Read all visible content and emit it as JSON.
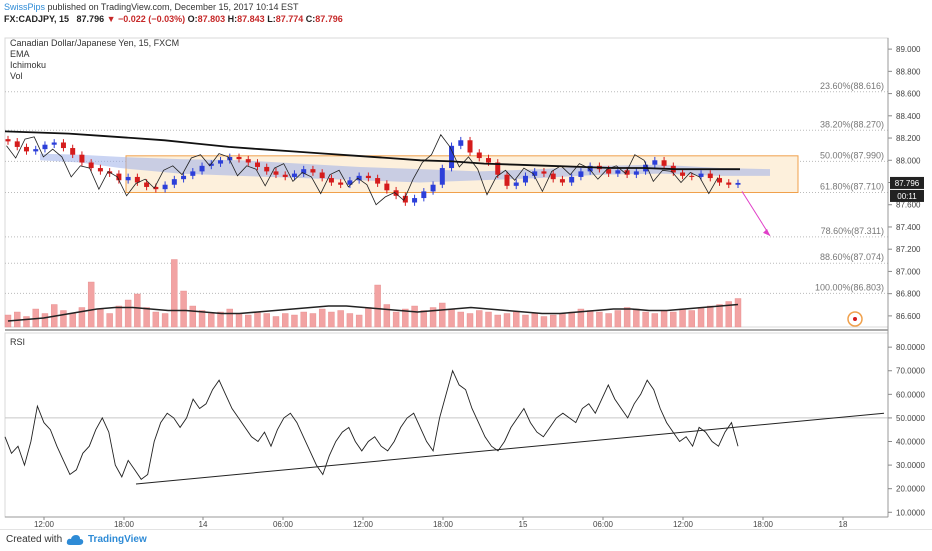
{
  "header": {
    "publisher": "SwissPips",
    "published_text": "published on TradingView.com, December 15, 2017 10:14 EST"
  },
  "ohlc": {
    "symbol": "FX:CADJPY, 15",
    "last": "87.796",
    "change": "−0.022 (−0.03%)",
    "o_label": "O:",
    "o": "87.803",
    "h_label": "H:",
    "h": "87.843",
    "l_label": "L:",
    "l": "87.774",
    "c_label": "C:",
    "c": "87.796"
  },
  "legend": {
    "title": "Canadian Dollar/Japanese Yen, 15, FXCM",
    "indicators": [
      "EMA",
      "Ichimoku",
      "Vol"
    ]
  },
  "rsi_label": "RSI",
  "footer": {
    "created": "Created with",
    "brand": "TradingView"
  },
  "colors": {
    "up": "#2c3fd9",
    "down": "#d51c1c",
    "fib_box": "#f0a04b",
    "fib_fill": "#fdf0dc",
    "volume": "#f2a3a3",
    "cloud": "#9fb1ea",
    "arrow": "#e040c8"
  },
  "chart_data": [
    {
      "type": "candlestick",
      "title": "Canadian Dollar/Japanese Yen, 15, FXCM",
      "ylim": [
        86.5,
        89.1
      ],
      "y_ticks": [
        "89.000",
        "88.800",
        "88.600",
        "88.400",
        "88.200",
        "88.000",
        "87.800",
        "87.600",
        "87.400",
        "87.200",
        "87.000",
        "86.800",
        "86.600"
      ],
      "x_ticks": [
        "12:00",
        "18:00",
        "14",
        "06:00",
        "12:00",
        "18:00",
        "15",
        "06:00",
        "12:00",
        "18:00",
        "18"
      ],
      "last_price": "87.796",
      "countdown": "00:11",
      "fibonacci": [
        {
          "label": "23.60%(88.616)",
          "level": 88.616
        },
        {
          "label": "38.20%(88.270)",
          "level": 88.27
        },
        {
          "label": "50.00%(87.990)",
          "level": 87.99
        },
        {
          "label": "61.80%(87.710)",
          "level": 87.71
        },
        {
          "label": "78.60%(87.311)",
          "level": 87.311
        },
        {
          "label": "88.60%(87.074)",
          "level": 87.074
        },
        {
          "label": "100.00%(86.803)",
          "level": 86.803
        }
      ],
      "fib_range": [
        87.71,
        88.04
      ],
      "series": [
        {
          "values": [
            88.17,
            88.12,
            88.08,
            88.1,
            88.14,
            88.16,
            88.11,
            88.05,
            87.98,
            87.93,
            87.9,
            87.88,
            87.82,
            87.85,
            87.8,
            87.76,
            87.74,
            87.78,
            87.83,
            87.86,
            87.9,
            87.95,
            87.97,
            88.0,
            88.03,
            88.01,
            87.98,
            87.94,
            87.9,
            87.87,
            87.85,
            87.88,
            87.92,
            87.89,
            87.84,
            87.8,
            87.78,
            87.82,
            87.86,
            87.84,
            87.79,
            87.73,
            87.68,
            87.62,
            87.66,
            87.72,
            87.78,
            87.93,
            88.13,
            88.18,
            88.07,
            88.02,
            87.98,
            87.87,
            87.77,
            87.8,
            87.86,
            87.9,
            87.88,
            87.83,
            87.8,
            87.85,
            87.9,
            87.95,
            87.92,
            87.88,
            87.91,
            87.87,
            87.9,
            87.96,
            88.0,
            87.95,
            87.89,
            87.86,
            87.85,
            87.88,
            87.84,
            87.8,
            87.78,
            87.796
          ]
        },
        {
          "name": "EMA",
          "values": [
            88.26,
            88.25,
            88.24,
            88.22,
            88.2,
            88.18,
            88.15,
            88.12,
            88.1,
            88.08,
            88.06,
            88.04,
            88.02,
            88.0,
            87.99,
            87.97,
            87.96,
            87.95,
            87.94,
            87.93,
            87.93,
            87.92,
            87.92,
            87.92
          ]
        }
      ],
      "volume": [
        8,
        10,
        7,
        12,
        9,
        15,
        11,
        9,
        13,
        30,
        12,
        9,
        14,
        18,
        22,
        13,
        10,
        9,
        45,
        24,
        14,
        11,
        9,
        10,
        12,
        9,
        8,
        10,
        9,
        7,
        9,
        8,
        10,
        9,
        12,
        10,
        11,
        9,
        8,
        13,
        28,
        15,
        10,
        12,
        14,
        11,
        13,
        16,
        12,
        10,
        9,
        11,
        10,
        8,
        9,
        10,
        8,
        9,
        7,
        8,
        9,
        10,
        12,
        11,
        10,
        9,
        11,
        13,
        12,
        10,
        9,
        11,
        10,
        12,
        11,
        13,
        14,
        15,
        17,
        19
      ],
      "volume_ma": [
        4,
        5,
        6,
        8,
        10,
        12,
        13,
        13,
        12,
        11,
        11,
        10,
        9,
        9,
        10,
        11,
        12,
        13,
        14,
        14,
        13,
        12,
        11,
        10,
        11,
        12,
        13,
        12,
        11,
        10,
        9,
        9,
        10,
        11,
        12,
        12,
        11,
        11,
        12,
        13,
        14,
        15
      ]
    },
    {
      "type": "line",
      "title": "RSI",
      "ylim": [
        8,
        86
      ],
      "y_ticks": [
        "80.0000",
        "70.0000",
        "60.0000",
        "50.0000",
        "40.0000",
        "30.0000",
        "20.0000",
        "10.0000"
      ],
      "rsi_level": 50,
      "series": [
        {
          "name": "RSI",
          "values": [
            42,
            35,
            38,
            30,
            40,
            55,
            48,
            45,
            38,
            32,
            26,
            28,
            35,
            38,
            45,
            50,
            44,
            30,
            25,
            32,
            28,
            24,
            26,
            40,
            48,
            52,
            50,
            46,
            50,
            58,
            54,
            56,
            62,
            66,
            60,
            54,
            50,
            46,
            42,
            40,
            44,
            38,
            45,
            50,
            52,
            48,
            42,
            36,
            30,
            26,
            34,
            40,
            44,
            46,
            40,
            36,
            40,
            42,
            38,
            36,
            40,
            46,
            50,
            52,
            46,
            40,
            36,
            50,
            60,
            70,
            64,
            62,
            54,
            48,
            42,
            38,
            36,
            40,
            46,
            50,
            54,
            48,
            44,
            42,
            46,
            50,
            52,
            50,
            48,
            54,
            56,
            52,
            58,
            64,
            58,
            54,
            50,
            56,
            60,
            66,
            62,
            54,
            48,
            44,
            40,
            42,
            38,
            46,
            44,
            40,
            38,
            44,
            48,
            38
          ]
        },
        {
          "name": "trendline",
          "values": [
            22,
            52
          ]
        }
      ]
    }
  ]
}
